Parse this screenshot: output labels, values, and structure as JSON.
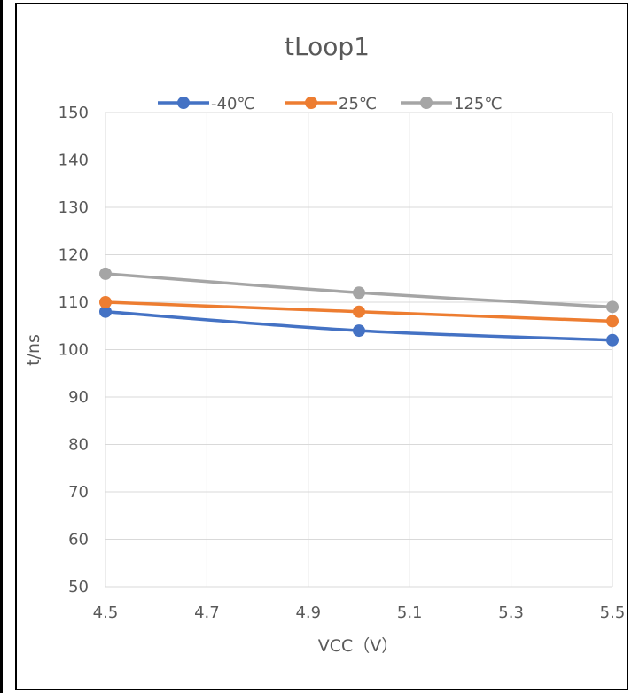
{
  "chart_data": {
    "type": "line",
    "title": "tLoop1",
    "xlabel": "VCC（V）",
    "ylabel": "t/ns",
    "xlim": [
      4.5,
      5.5
    ],
    "ylim": [
      50,
      150
    ],
    "x_ticks": [
      4.5,
      4.7,
      4.9,
      5.1,
      5.3,
      5.5
    ],
    "y_ticks": [
      50,
      60,
      70,
      80,
      90,
      100,
      110,
      120,
      130,
      140,
      150
    ],
    "grid": true,
    "legend_position": "top",
    "x": [
      4.5,
      5.0,
      5.5
    ],
    "series": [
      {
        "name": "-40℃",
        "values": [
          108,
          104,
          102
        ],
        "color": "#4472C4"
      },
      {
        "name": "25℃",
        "values": [
          110,
          108,
          106
        ],
        "color": "#ED7D31"
      },
      {
        "name": "125℃",
        "values": [
          116,
          112,
          109
        ],
        "color": "#A5A5A5"
      }
    ]
  }
}
